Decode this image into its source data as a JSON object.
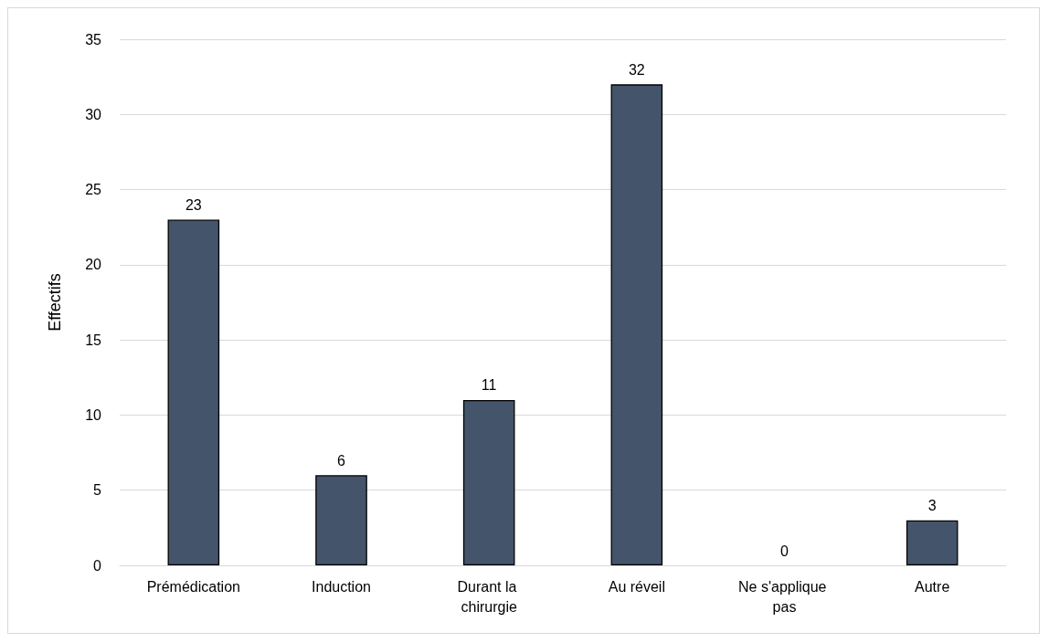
{
  "chart_data": {
    "type": "bar",
    "ylabel": "Effectifs",
    "categories": [
      "Prémédication",
      "Induction",
      "Durant la chirurgie",
      "Au réveil",
      "Ne s'applique pas",
      "Autre"
    ],
    "values": [
      23,
      6,
      11,
      32,
      0,
      3
    ],
    "color": "#44546a",
    "ylim": [
      0,
      35
    ],
    "yticks": [
      0,
      5,
      10,
      15,
      20,
      25,
      30,
      35
    ],
    "grid": "y",
    "data_labels": true
  }
}
